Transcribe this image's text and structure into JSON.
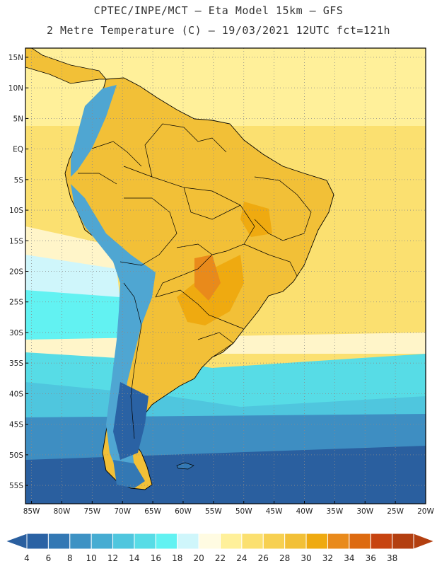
{
  "header": {
    "line1": "CPTEC/INPE/MCT –  Eta Model 15km – GFS",
    "line2": "2 Metre Temperature (C) – 19/03/2021 12UTC fct=121h"
  },
  "axes": {
    "lat_labels": [
      "15N",
      "10N",
      "5N",
      "EQ",
      "5S",
      "10S",
      "15S",
      "20S",
      "25S",
      "30S",
      "35S",
      "40S",
      "45S",
      "50S",
      "55S"
    ],
    "lat_values": [
      15,
      10,
      5,
      0,
      -5,
      -10,
      -15,
      -20,
      -25,
      -30,
      -35,
      -40,
      -45,
      -50,
      -55
    ],
    "lon_labels": [
      "85W",
      "80W",
      "75W",
      "70W",
      "65W",
      "60W",
      "55W",
      "50W",
      "45W",
      "40W",
      "35W",
      "30W",
      "25W",
      "20W"
    ],
    "lon_values": [
      -85,
      -80,
      -75,
      -70,
      -65,
      -60,
      -55,
      -50,
      -45,
      -40,
      -35,
      -30,
      -25,
      -20
    ],
    "lat_range": [
      -58,
      16.5
    ],
    "lon_range": [
      -86,
      -20
    ]
  },
  "colorbar": {
    "labels": [
      "4",
      "6",
      "8",
      "10",
      "12",
      "14",
      "16",
      "18",
      "20",
      "22",
      "24",
      "26",
      "28",
      "30",
      "32",
      "34",
      "36",
      "38"
    ],
    "colors": [
      "#2a62a4",
      "#3378b4",
      "#3d92c4",
      "#46acd2",
      "#4fc6de",
      "#57dce6",
      "#62f2f2",
      "#cff6fb",
      "#fffbe2",
      "#fff09a",
      "#fbe070",
      "#f7d051",
      "#f2c037",
      "#efaa10",
      "#e98a1b",
      "#dd6a10",
      "#c74410",
      "#b33f10"
    ],
    "left_arrow_color": "#2a5f9f",
    "right_arrow_color": "#b33f10"
  },
  "colors": {
    "ocean_cold": "#2a5f9f",
    "ocean_cool": "#3e8ec2",
    "ocean_mid": "#57dce6",
    "ocean_warm": "#fbe070",
    "land_hot": "#f2c037",
    "andes": "#4fa6d2",
    "border_line": "#000000",
    "grid_line": "#8a8a8a"
  }
}
